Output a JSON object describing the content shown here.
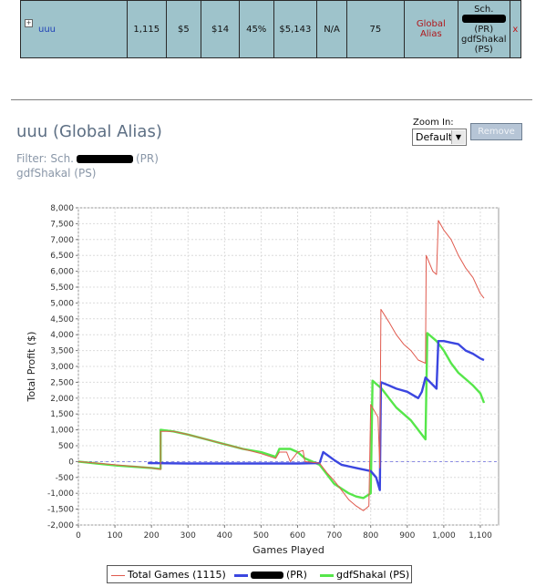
{
  "summary_row": {
    "expand_icon": "plus-box-icon",
    "name": "uuu",
    "games": "1,115",
    "col3": "$5",
    "col4": "$14",
    "col5": "45%",
    "col6": "$5,143",
    "col7": "N/A",
    "col8": "75",
    "type": "Global Alias",
    "members": [
      "Sch.",
      "(PR)",
      "gdfShakal",
      "(PS)"
    ],
    "remove_mark": "x"
  },
  "alias": {
    "title": "uuu (Global Alias)",
    "filter_prefix": "Filter: Sch.",
    "filter_pr_suffix": "(PR)",
    "filter_ps": "gdfShakal (PS)"
  },
  "zoom": {
    "label": "Zoom In:",
    "selected": "Default",
    "remove_label": "Remove"
  },
  "colors": {
    "total": "#e05a4e",
    "pr": "#3b46e0",
    "ps": "#56e64a"
  },
  "chart_data": {
    "type": "line",
    "xlabel": "Games Played",
    "ylabel": "Total Profit ($)",
    "xlim": [
      0,
      1150
    ],
    "ylim": [
      -2000,
      8000
    ],
    "x_ticks": [
      "0",
      "100",
      "200",
      "300",
      "400",
      "500",
      "600",
      "700",
      "800",
      "900",
      "1,000",
      "1,100"
    ],
    "y_ticks": [
      "-2,000",
      "-1,500",
      "-1,000",
      "-500",
      "0",
      "500",
      "1,000",
      "1,500",
      "2,000",
      "2,500",
      "3,000",
      "3,500",
      "4,000",
      "4,500",
      "5,000",
      "5,500",
      "6,000",
      "6,500",
      "7,000",
      "7,500",
      "8,000"
    ],
    "grid": true,
    "legend_position": "bottom",
    "series": [
      {
        "name": "Total Games (1115)",
        "points": [
          [
            0,
            0
          ],
          [
            50,
            -50
          ],
          [
            100,
            -100
          ],
          [
            150,
            -150
          ],
          [
            200,
            -200
          ],
          [
            225,
            -250
          ],
          [
            225,
            950
          ],
          [
            260,
            950
          ],
          [
            300,
            850
          ],
          [
            350,
            700
          ],
          [
            400,
            550
          ],
          [
            450,
            400
          ],
          [
            500,
            250
          ],
          [
            540,
            100
          ],
          [
            550,
            300
          ],
          [
            570,
            300
          ],
          [
            580,
            0
          ],
          [
            600,
            300
          ],
          [
            615,
            350
          ],
          [
            620,
            0
          ],
          [
            660,
            -50
          ],
          [
            680,
            -350
          ],
          [
            700,
            -600
          ],
          [
            720,
            -900
          ],
          [
            740,
            -1200
          ],
          [
            760,
            -1400
          ],
          [
            780,
            -1550
          ],
          [
            795,
            -1400
          ],
          [
            800,
            1800
          ],
          [
            820,
            1400
          ],
          [
            825,
            -200
          ],
          [
            828,
            4800
          ],
          [
            850,
            4400
          ],
          [
            870,
            4000
          ],
          [
            890,
            3700
          ],
          [
            910,
            3500
          ],
          [
            930,
            3200
          ],
          [
            950,
            3100
          ],
          [
            952,
            6500
          ],
          [
            970,
            6000
          ],
          [
            980,
            5900
          ],
          [
            985,
            7600
          ],
          [
            1000,
            7300
          ],
          [
            1020,
            7000
          ],
          [
            1040,
            6500
          ],
          [
            1060,
            6100
          ],
          [
            1080,
            5800
          ],
          [
            1100,
            5300
          ],
          [
            1110,
            5150
          ]
        ]
      },
      {
        "name": "(PR)",
        "points": [
          [
            190,
            -50
          ],
          [
            300,
            -60
          ],
          [
            400,
            -60
          ],
          [
            500,
            -60
          ],
          [
            600,
            -60
          ],
          [
            660,
            -50
          ],
          [
            670,
            300
          ],
          [
            700,
            50
          ],
          [
            720,
            -100
          ],
          [
            760,
            -200
          ],
          [
            800,
            -300
          ],
          [
            815,
            -500
          ],
          [
            825,
            -900
          ],
          [
            828,
            2500
          ],
          [
            850,
            2400
          ],
          [
            870,
            2300
          ],
          [
            900,
            2200
          ],
          [
            930,
            2000
          ],
          [
            940,
            2200
          ],
          [
            950,
            2650
          ],
          [
            980,
            2300
          ],
          [
            985,
            3800
          ],
          [
            1000,
            3800
          ],
          [
            1020,
            3750
          ],
          [
            1040,
            3700
          ],
          [
            1060,
            3500
          ],
          [
            1080,
            3400
          ],
          [
            1100,
            3250
          ],
          [
            1110,
            3200
          ]
        ]
      },
      {
        "name": "gdfShakal (PS)",
        "points": [
          [
            0,
            0
          ],
          [
            50,
            -60
          ],
          [
            100,
            -120
          ],
          [
            150,
            -160
          ],
          [
            200,
            -200
          ],
          [
            225,
            -230
          ],
          [
            225,
            1000
          ],
          [
            260,
            950
          ],
          [
            300,
            850
          ],
          [
            350,
            700
          ],
          [
            400,
            550
          ],
          [
            450,
            400
          ],
          [
            500,
            300
          ],
          [
            540,
            150
          ],
          [
            550,
            400
          ],
          [
            580,
            400
          ],
          [
            600,
            300
          ],
          [
            620,
            100
          ],
          [
            660,
            -100
          ],
          [
            680,
            -400
          ],
          [
            700,
            -700
          ],
          [
            720,
            -850
          ],
          [
            740,
            -1000
          ],
          [
            760,
            -1100
          ],
          [
            780,
            -1150
          ],
          [
            800,
            -1000
          ],
          [
            805,
            2550
          ],
          [
            830,
            2300
          ],
          [
            850,
            2000
          ],
          [
            870,
            1700
          ],
          [
            890,
            1500
          ],
          [
            910,
            1300
          ],
          [
            930,
            1000
          ],
          [
            950,
            700
          ],
          [
            955,
            4050
          ],
          [
            980,
            3800
          ],
          [
            1000,
            3500
          ],
          [
            1020,
            3100
          ],
          [
            1040,
            2800
          ],
          [
            1060,
            2600
          ],
          [
            1080,
            2400
          ],
          [
            1100,
            2150
          ],
          [
            1110,
            1850
          ]
        ]
      }
    ]
  }
}
